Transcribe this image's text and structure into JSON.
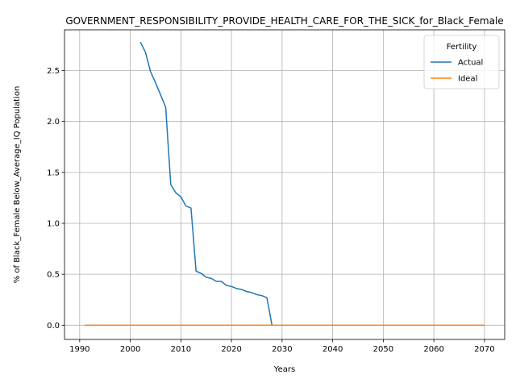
{
  "chart_data": {
    "type": "line",
    "title": "GOVERNMENT_RESPONSIBILITY_PROVIDE_HEALTH_CARE_FOR_THE_SICK_for_Black_Female",
    "xlabel": "Years",
    "ylabel": "% of Black_Female Below_Average_IQ Population",
    "xlim": [
      1987,
      2074
    ],
    "ylim": [
      -0.14,
      2.9
    ],
    "xticks": [
      1990,
      2000,
      2010,
      2020,
      2030,
      2040,
      2050,
      2060,
      2070
    ],
    "yticks": [
      0.0,
      0.5,
      1.0,
      1.5,
      2.0,
      2.5
    ],
    "xtick_labels": [
      "1990",
      "2000",
      "2010",
      "2020",
      "2030",
      "2040",
      "2050",
      "2060",
      "2070"
    ],
    "ytick_labels": [
      "0.0",
      "0.5",
      "1.0",
      "1.5",
      "2.0",
      "2.5"
    ],
    "grid": true,
    "legend": {
      "title": "Fertility",
      "placement": "top-right"
    },
    "series": [
      {
        "name": "Actual",
        "color": "#1f77b4",
        "x": [
          2002,
          2003,
          2004,
          2005,
          2006,
          2007,
          2008,
          2009,
          2010,
          2011,
          2012,
          2013,
          2014,
          2015,
          2016,
          2017,
          2018,
          2019,
          2020,
          2021,
          2022,
          2023,
          2024,
          2025,
          2026,
          2027,
          2028
        ],
        "y": [
          2.78,
          2.68,
          2.49,
          2.38,
          2.26,
          2.14,
          1.38,
          1.3,
          1.26,
          1.17,
          1.15,
          0.53,
          0.51,
          0.47,
          0.46,
          0.43,
          0.43,
          0.39,
          0.38,
          0.36,
          0.35,
          0.33,
          0.32,
          0.3,
          0.29,
          0.27,
          0.0
        ]
      },
      {
        "name": "Ideal",
        "color": "#ff7f0e",
        "x": [
          1991,
          2070
        ],
        "y": [
          0.0,
          0.0
        ]
      }
    ]
  }
}
